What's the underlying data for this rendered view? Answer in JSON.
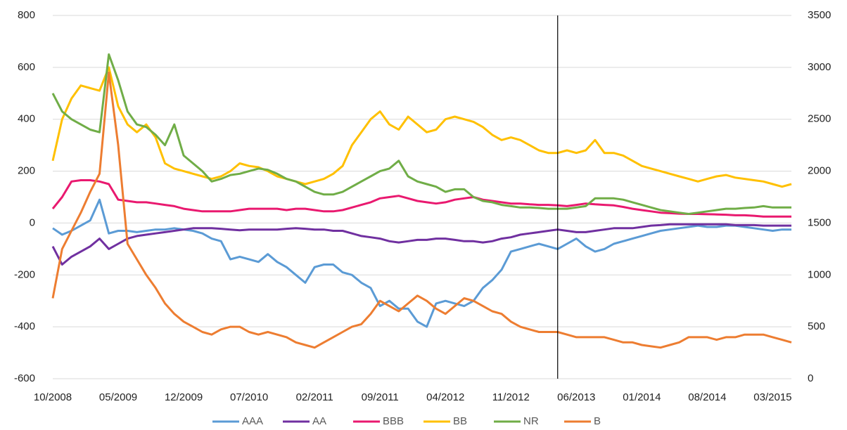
{
  "chart_data": {
    "type": "line",
    "x": [
      "10/2008",
      "11/2008",
      "12/2008",
      "01/2009",
      "02/2009",
      "03/2009",
      "04/2009",
      "05/2009",
      "06/2009",
      "07/2009",
      "08/2009",
      "09/2009",
      "10/2009",
      "11/2009",
      "12/2009",
      "01/2010",
      "02/2010",
      "03/2010",
      "04/2010",
      "05/2010",
      "06/2010",
      "07/2010",
      "08/2010",
      "09/2010",
      "10/2010",
      "11/2010",
      "12/2010",
      "01/2011",
      "02/2011",
      "03/2011",
      "04/2011",
      "05/2011",
      "06/2011",
      "07/2011",
      "08/2011",
      "09/2011",
      "10/2011",
      "11/2011",
      "12/2011",
      "01/2012",
      "02/2012",
      "03/2012",
      "04/2012",
      "05/2012",
      "06/2012",
      "07/2012",
      "08/2012",
      "09/2012",
      "10/2012",
      "11/2012",
      "12/2012",
      "01/2013",
      "02/2013",
      "03/2013",
      "04/2013",
      "05/2013",
      "06/2013",
      "07/2013",
      "08/2013",
      "09/2013",
      "10/2013",
      "11/2013",
      "12/2013",
      "01/2014",
      "02/2014",
      "03/2014",
      "04/2014",
      "05/2014",
      "06/2014",
      "07/2014",
      "08/2014",
      "09/2014",
      "10/2014",
      "11/2014",
      "12/2014",
      "01/2015",
      "02/2015",
      "03/2015",
      "04/2015",
      "05/2015"
    ],
    "xticks": [
      "10/2008",
      "05/2009",
      "12/2009",
      "07/2010",
      "02/2011",
      "09/2011",
      "04/2012",
      "11/2012",
      "06/2013",
      "01/2014",
      "08/2014",
      "03/2015"
    ],
    "ylim": [
      -600,
      800
    ],
    "yticks": [
      -600,
      -400,
      -200,
      0,
      200,
      400,
      600,
      800
    ],
    "y2lim": [
      0,
      3500
    ],
    "y2ticks": [
      0,
      500,
      1000,
      1500,
      2000,
      2500,
      3000,
      3500
    ],
    "grid": true,
    "legend": "bottom",
    "series": [
      {
        "name": "AAA",
        "color": "#5b9bd5",
        "values": [
          -20,
          -45,
          -30,
          -10,
          10,
          90,
          -40,
          -30,
          -30,
          -35,
          -30,
          -25,
          -25,
          -20,
          -25,
          -30,
          -40,
          -60,
          -70,
          -140,
          -130,
          -140,
          -150,
          -120,
          -150,
          -170,
          -200,
          -230,
          -170,
          -160,
          -160,
          -190,
          -200,
          -230,
          -250,
          -320,
          -300,
          -330,
          -330,
          -380,
          -400,
          -310,
          -300,
          -310,
          -320,
          -300,
          -250,
          -220,
          -180,
          -110,
          -100,
          -90,
          -80,
          -90,
          -100,
          -80,
          -60,
          -90,
          -110,
          -100,
          -80,
          -70,
          -60,
          -50,
          -40,
          -30,
          -25,
          -20,
          -15,
          -10,
          -15,
          -15,
          -10,
          -10,
          -15,
          -20,
          -25,
          -30,
          -25,
          -25
        ]
      },
      {
        "name": "AA",
        "color": "#7030a0",
        "values": [
          -90,
          -160,
          -130,
          -110,
          -90,
          -60,
          -100,
          -80,
          -60,
          -50,
          -45,
          -40,
          -35,
          -30,
          -25,
          -20,
          -20,
          -20,
          -22,
          -25,
          -28,
          -25,
          -25,
          -25,
          -25,
          -22,
          -20,
          -22,
          -25,
          -25,
          -30,
          -30,
          -40,
          -50,
          -55,
          -60,
          -70,
          -75,
          -70,
          -65,
          -65,
          -60,
          -60,
          -65,
          -70,
          -70,
          -75,
          -70,
          -60,
          -55,
          -45,
          -40,
          -35,
          -30,
          -25,
          -30,
          -35,
          -35,
          -30,
          -25,
          -20,
          -20,
          -20,
          -15,
          -10,
          -8,
          -5,
          -5,
          -5,
          -5,
          -5,
          -5,
          -5,
          -8,
          -8,
          -8,
          -10,
          -10,
          -10,
          -10
        ]
      },
      {
        "name": "BBB",
        "color": "#e9196f",
        "values": [
          55,
          100,
          160,
          165,
          165,
          160,
          150,
          90,
          85,
          80,
          80,
          75,
          70,
          65,
          55,
          50,
          45,
          45,
          45,
          45,
          50,
          55,
          55,
          55,
          55,
          50,
          55,
          55,
          50,
          45,
          45,
          50,
          60,
          70,
          80,
          95,
          100,
          105,
          95,
          85,
          80,
          75,
          80,
          90,
          95,
          100,
          90,
          85,
          80,
          75,
          75,
          72,
          70,
          70,
          68,
          65,
          70,
          75,
          72,
          70,
          68,
          62,
          55,
          50,
          45,
          40,
          38,
          36,
          35,
          35,
          34,
          33,
          32,
          30,
          30,
          28,
          25,
          25,
          25,
          25
        ]
      },
      {
        "name": "BB",
        "color": "#ffc000",
        "values": [
          240,
          400,
          480,
          530,
          520,
          510,
          600,
          450,
          380,
          350,
          380,
          330,
          230,
          210,
          200,
          190,
          180,
          170,
          180,
          200,
          230,
          220,
          215,
          200,
          180,
          170,
          160,
          150,
          160,
          170,
          190,
          220,
          300,
          350,
          400,
          430,
          380,
          360,
          410,
          380,
          350,
          360,
          400,
          410,
          400,
          390,
          370,
          340,
          320,
          330,
          320,
          300,
          280,
          270,
          270,
          280,
          270,
          280,
          320,
          270,
          270,
          260,
          240,
          220,
          210,
          200,
          190,
          180,
          170,
          160,
          170,
          180,
          185,
          175,
          170,
          165,
          160,
          150,
          140,
          150
        ]
      },
      {
        "name": "NR",
        "color": "#70ad47",
        "values": [
          500,
          430,
          400,
          380,
          360,
          350,
          650,
          550,
          430,
          380,
          370,
          340,
          300,
          380,
          260,
          230,
          200,
          160,
          170,
          185,
          190,
          200,
          210,
          205,
          190,
          170,
          160,
          140,
          120,
          110,
          110,
          120,
          140,
          160,
          180,
          200,
          210,
          240,
          180,
          160,
          150,
          140,
          120,
          130,
          130,
          100,
          85,
          80,
          70,
          65,
          60,
          60,
          58,
          55,
          55,
          55,
          60,
          65,
          95,
          95,
          95,
          90,
          80,
          70,
          60,
          50,
          45,
          40,
          35,
          40,
          45,
          50,
          55,
          55,
          58,
          60,
          65,
          60,
          60,
          60
        ]
      },
      {
        "name": "B",
        "color": "#ed7d31",
        "axis": "y2",
        "values": [
          775,
          1250,
          1425,
          1600,
          1800,
          1975,
          2950,
          2250,
          1300,
          1150,
          1000,
          875,
          725,
          625,
          550,
          500,
          450,
          425,
          475,
          500,
          500,
          450,
          425,
          450,
          425,
          400,
          350,
          325,
          300,
          350,
          400,
          450,
          500,
          525,
          625,
          750,
          700,
          650,
          725,
          800,
          750,
          675,
          625,
          700,
          775,
          750,
          700,
          650,
          625,
          550,
          500,
          475,
          450,
          450,
          450,
          425,
          400,
          400,
          400,
          400,
          375,
          350,
          350,
          325,
          312,
          300,
          325,
          350,
          400,
          400,
          400,
          375,
          400,
          400,
          425,
          425,
          425,
          400,
          375,
          350
        ]
      }
    ]
  }
}
